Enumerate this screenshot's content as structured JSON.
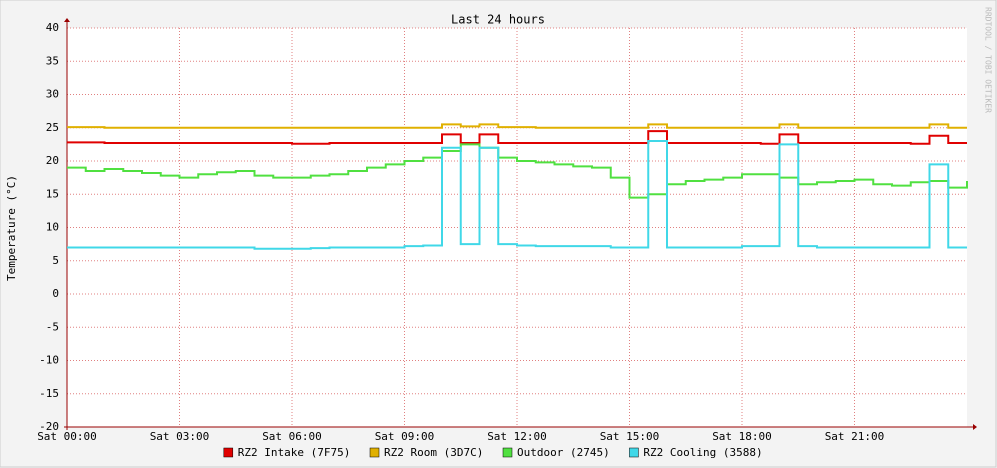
{
  "chart_data": {
    "type": "line",
    "title": "Last 24 hours",
    "y_label": "Temperature (°C)",
    "watermark": "RRDTOOL / TOBI OETIKER",
    "x": [
      0,
      0.5,
      1,
      1.5,
      2,
      2.5,
      3,
      3.5,
      4,
      4.5,
      5,
      5.5,
      6,
      6.5,
      7,
      7.5,
      8,
      8.5,
      9,
      9.5,
      10,
      10.5,
      11,
      11.5,
      12,
      12.5,
      13,
      13.5,
      14,
      14.5,
      15,
      15.5,
      16,
      16.5,
      17,
      17.5,
      18,
      18.5,
      19,
      19.5,
      20,
      20.5,
      21,
      21.5,
      22,
      22.5,
      23,
      23.5,
      24
    ],
    "xlim": [
      0,
      24
    ],
    "xticks": [
      {
        "value": 0,
        "label": "Sat 00:00"
      },
      {
        "value": 3,
        "label": "Sat 03:00"
      },
      {
        "value": 6,
        "label": "Sat 06:00"
      },
      {
        "value": 9,
        "label": "Sat 09:00"
      },
      {
        "value": 12,
        "label": "Sat 12:00"
      },
      {
        "value": 15,
        "label": "Sat 15:00"
      },
      {
        "value": 18,
        "label": "Sat 18:00"
      },
      {
        "value": 21,
        "label": "Sat 21:00"
      }
    ],
    "ylim": [
      -20,
      40
    ],
    "yticks": [
      -20,
      -15,
      -10,
      -5,
      0,
      5,
      10,
      15,
      20,
      25,
      30,
      35,
      40
    ],
    "grid": true,
    "series": [
      {
        "name": "RZ2 Intake (7F75)",
        "color": "#e00000",
        "values": [
          22.8,
          22.8,
          22.7,
          22.7,
          22.7,
          22.7,
          22.7,
          22.7,
          22.7,
          22.7,
          22.7,
          22.7,
          22.6,
          22.6,
          22.7,
          22.7,
          22.7,
          22.7,
          22.7,
          22.7,
          24,
          22.7,
          24,
          22.7,
          22.7,
          22.7,
          22.7,
          22.7,
          22.7,
          22.7,
          22.7,
          24.5,
          22.7,
          22.7,
          22.7,
          22.7,
          22.7,
          22.6,
          24,
          22.7,
          22.7,
          22.7,
          22.7,
          22.7,
          22.7,
          22.6,
          23.8,
          22.7,
          22.7
        ]
      },
      {
        "name": "RZ2 Room (3D7C)",
        "color": "#e0b000",
        "values": [
          25.1,
          25.1,
          25,
          25,
          25,
          25,
          25,
          25,
          25,
          25,
          25,
          25,
          25,
          25,
          25,
          25,
          25,
          25,
          25,
          25,
          25.5,
          25.2,
          25.5,
          25.1,
          25.1,
          25,
          25,
          25,
          25,
          25,
          25,
          25.5,
          25,
          25,
          25,
          25,
          25,
          25,
          25.5,
          25,
          25,
          25,
          25,
          25,
          25,
          25,
          25.5,
          25,
          25
        ]
      },
      {
        "name": "Outdoor (2745)",
        "color": "#50e040",
        "values": [
          19,
          18.5,
          18.8,
          18.5,
          18.2,
          17.8,
          17.5,
          18,
          18.3,
          18.5,
          17.8,
          17.5,
          17.5,
          17.8,
          18,
          18.5,
          19,
          19.5,
          20,
          20.5,
          21.5,
          22.5,
          22,
          20.5,
          20,
          19.8,
          19.5,
          19.2,
          19,
          17.5,
          14.5,
          15,
          16.5,
          17,
          17.2,
          17.5,
          18,
          18,
          17.5,
          16.5,
          16.8,
          17,
          17.2,
          16.5,
          16.3,
          16.8,
          17,
          16,
          17
        ]
      },
      {
        "name": "RZ2 Cooling (3588)",
        "color": "#40d8e8",
        "values": [
          7,
          7,
          7,
          7,
          7,
          7,
          7,
          7,
          7,
          7,
          6.8,
          6.8,
          6.8,
          6.9,
          7,
          7,
          7,
          7,
          7.2,
          7.3,
          22,
          7.5,
          22,
          7.5,
          7.3,
          7.2,
          7.2,
          7.2,
          7.2,
          7,
          7,
          23,
          7,
          7,
          7,
          7,
          7.2,
          7.2,
          22.5,
          7.2,
          7,
          7,
          7,
          7,
          7,
          7,
          19.5,
          7,
          7
        ]
      }
    ]
  }
}
